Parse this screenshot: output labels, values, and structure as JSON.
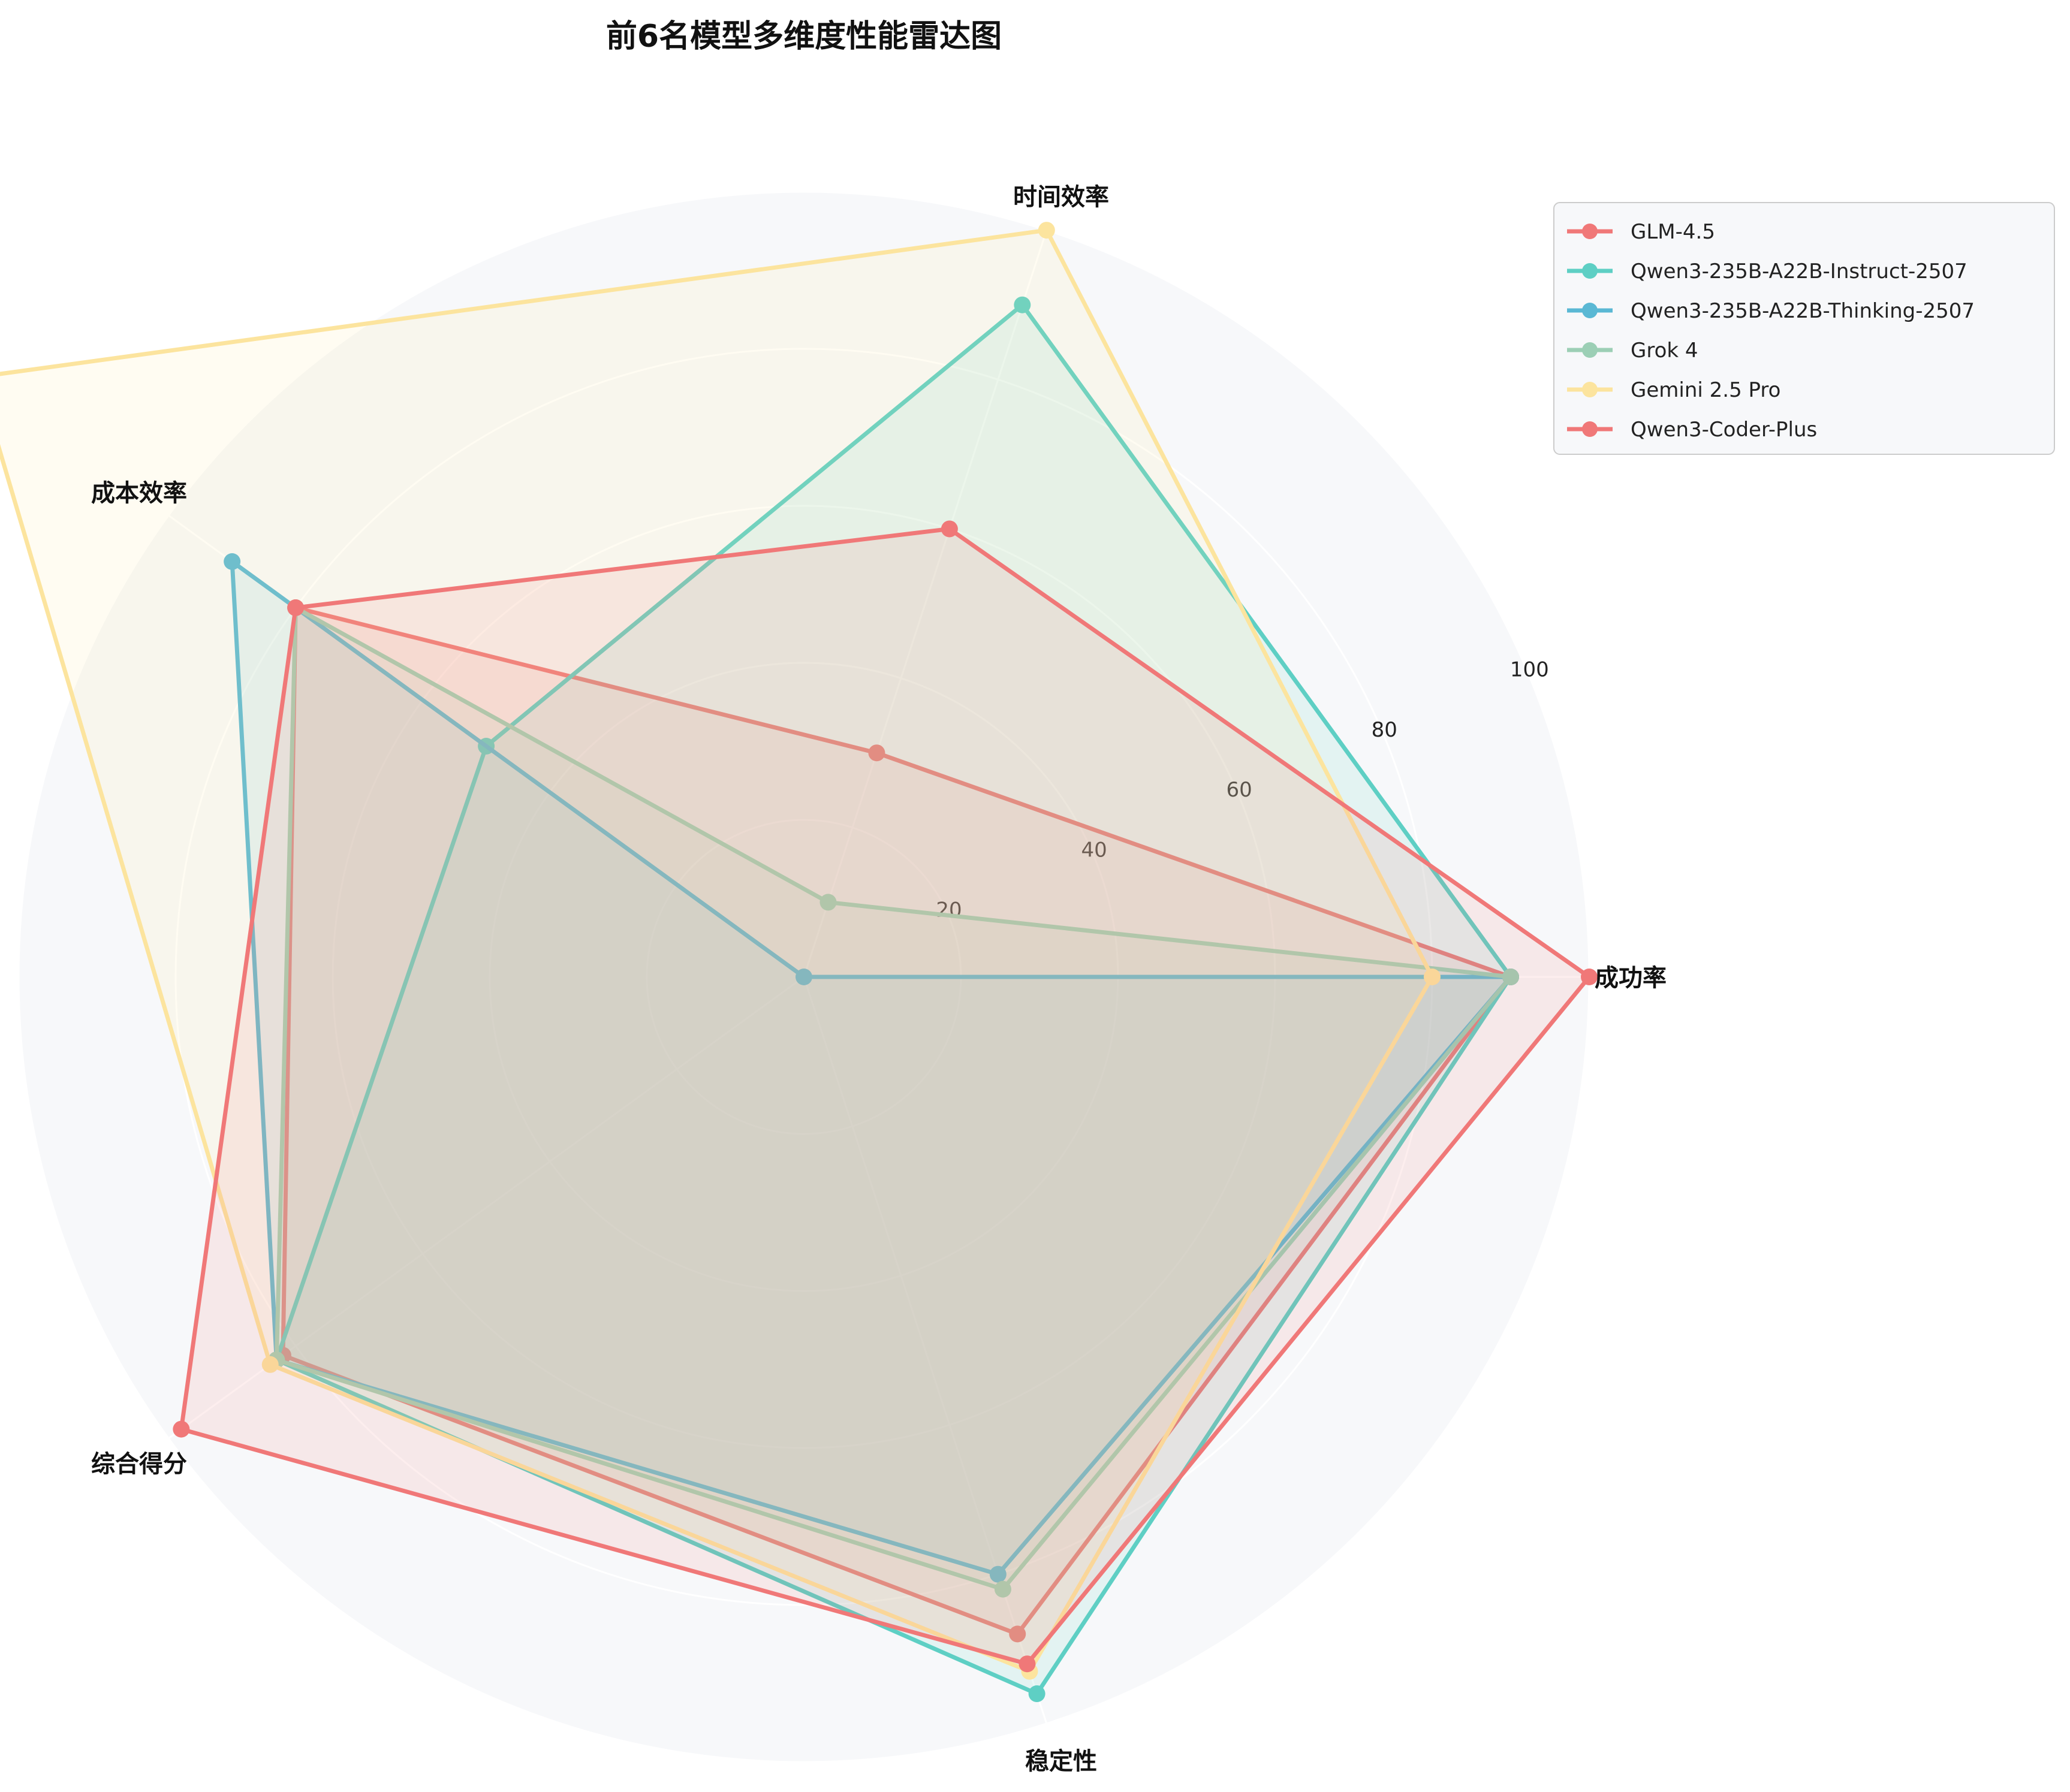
{
  "chart_data": {
    "type": "radar",
    "title": "前6名模型多维度性能雷达图",
    "axes": [
      "成功率",
      "时间效率",
      "成本效率",
      "综合得分",
      "稳定性"
    ],
    "rlim": [
      0,
      100
    ],
    "ticks": [
      20,
      40,
      60,
      80,
      100
    ],
    "grid": true,
    "legend_position": "top-right",
    "series": [
      {
        "name": "GLM-4.5",
        "color": "#f07878",
        "values": [
          90,
          30,
          80,
          82,
          88
        ]
      },
      {
        "name": "Qwen3-235B-A22B-Instruct-2507",
        "color": "#5ecfc4",
        "values": [
          90,
          90,
          50,
          83,
          96
        ]
      },
      {
        "name": "Qwen3-235B-A22B-Thinking-2507",
        "color": "#5ab8d4",
        "values": [
          90,
          0,
          90,
          83,
          80
        ]
      },
      {
        "name": "Grok 4",
        "color": "#9ccfb5",
        "values": [
          90,
          10,
          80,
          83,
          82
        ]
      },
      {
        "name": "Gemini 2.5 Pro",
        "color": "#fce49e",
        "values": [
          80,
          100,
          130,
          84,
          93
        ]
      },
      {
        "name": "Qwen3-Coder-Plus",
        "color": "#f07878",
        "values": [
          100,
          60,
          80,
          98,
          92
        ]
      }
    ]
  }
}
